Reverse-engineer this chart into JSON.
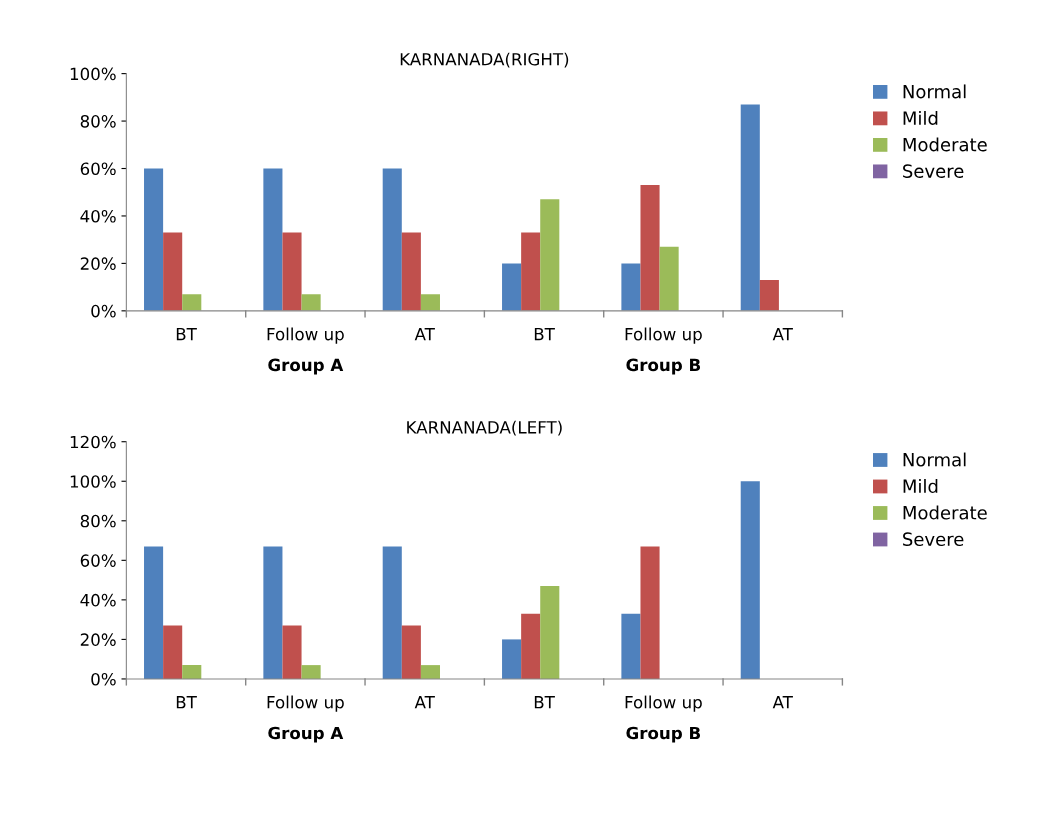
{
  "chart_data": [
    {
      "type": "bar",
      "title": "KARNANADA(RIGHT)",
      "categories": [
        "BT",
        "Follow up",
        "AT",
        "BT",
        "Follow up",
        "AT"
      ],
      "series": [
        {
          "name": "Normal",
          "color": "#4f81bd",
          "values": [
            60,
            60,
            60,
            20,
            20,
            87
          ]
        },
        {
          "name": "Mild",
          "color": "#c0504d",
          "values": [
            33,
            33,
            33,
            33,
            53,
            13
          ]
        },
        {
          "name": "Moderate",
          "color": "#9bbb59",
          "values": [
            7,
            7,
            7,
            47,
            27,
            0
          ]
        },
        {
          "name": "Severe",
          "color": "#8064a2",
          "values": [
            0,
            0,
            0,
            0,
            0,
            0
          ]
        }
      ],
      "ylim": [
        0,
        100
      ],
      "yticks": [
        {
          "value": 0,
          "label": "0%"
        },
        {
          "value": 20,
          "label": "20%"
        },
        {
          "value": 40,
          "label": "40%"
        },
        {
          "value": 60,
          "label": "60%"
        },
        {
          "value": 80,
          "label": "80%"
        },
        {
          "value": 100,
          "label": "100%"
        }
      ],
      "annotations": [
        "Group A",
        "Group B"
      ],
      "legend": "right",
      "grid": false
    },
    {
      "type": "bar",
      "title": "KARNANADA(LEFT)",
      "categories": [
        "BT",
        "Follow up",
        "AT",
        "BT",
        "Follow up",
        "AT"
      ],
      "series": [
        {
          "name": "Normal",
          "color": "#4f81bd",
          "values": [
            67,
            67,
            67,
            20,
            33,
            100
          ]
        },
        {
          "name": "Mild",
          "color": "#c0504d",
          "values": [
            27,
            27,
            27,
            33,
            67,
            0
          ]
        },
        {
          "name": "Moderate",
          "color": "#9bbb59",
          "values": [
            7,
            7,
            7,
            47,
            0,
            0
          ]
        },
        {
          "name": "Severe",
          "color": "#8064a2",
          "values": [
            0,
            0,
            0,
            0,
            0,
            0
          ]
        }
      ],
      "ylim": [
        0,
        120
      ],
      "yticks": [
        {
          "value": 0,
          "label": "0%"
        },
        {
          "value": 20,
          "label": "20%"
        },
        {
          "value": 40,
          "label": "40%"
        },
        {
          "value": 60,
          "label": "60%"
        },
        {
          "value": 80,
          "label": "80%"
        },
        {
          "value": 100,
          "label": "100%"
        },
        {
          "value": 120,
          "label": "120%"
        }
      ],
      "annotations": [
        "Group A",
        "Group B"
      ],
      "legend": "right",
      "grid": false
    }
  ]
}
